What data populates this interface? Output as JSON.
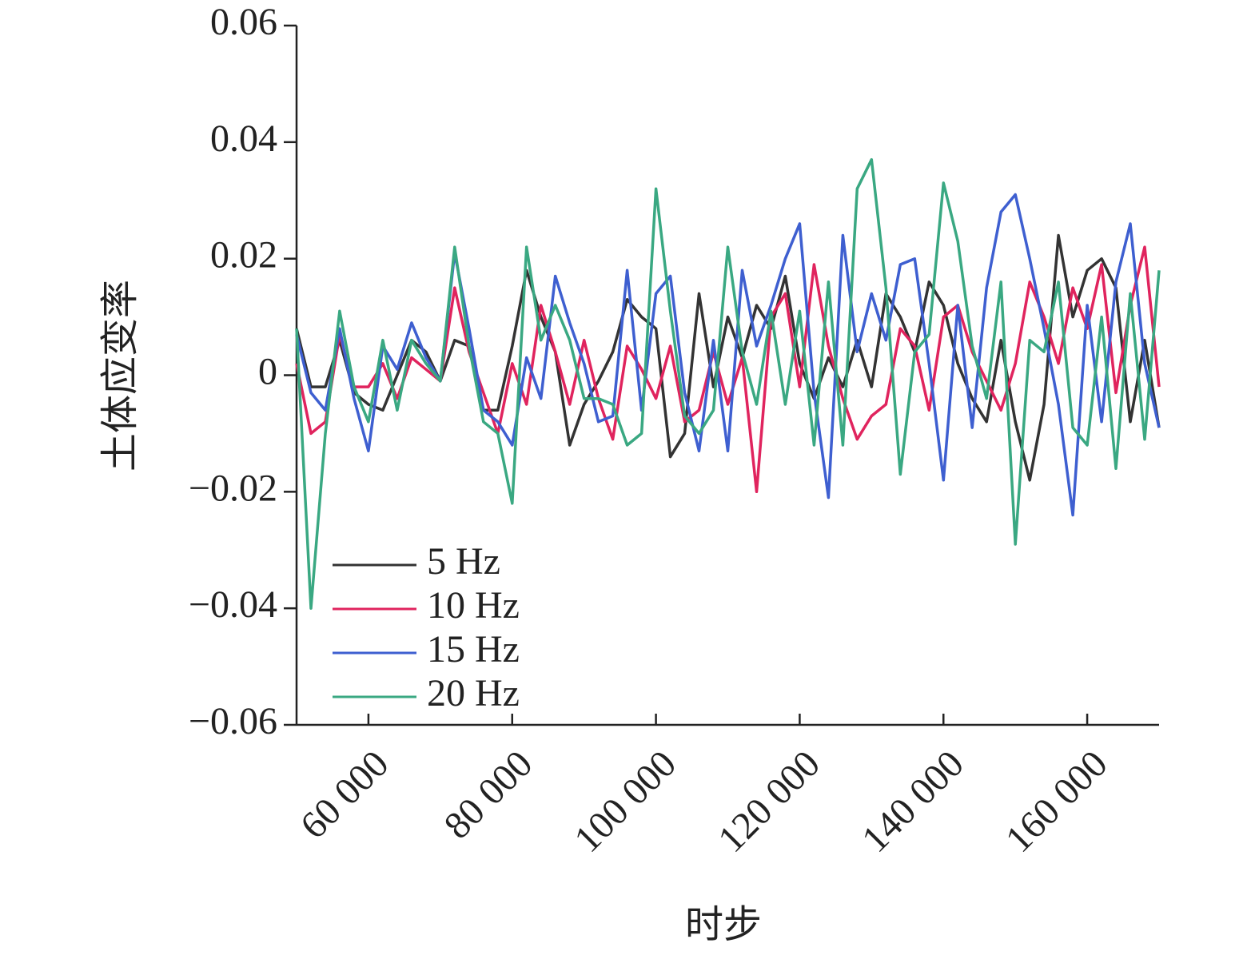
{
  "chart_data": {
    "type": "line",
    "xlabel": "时步",
    "ylabel": "土体应变率",
    "x": [
      50000,
      52000,
      54000,
      56000,
      58000,
      60000,
      62000,
      64000,
      66000,
      68000,
      70000,
      72000,
      74000,
      76000,
      78000,
      80000,
      82000,
      84000,
      86000,
      88000,
      90000,
      92000,
      94000,
      96000,
      98000,
      100000,
      102000,
      104000,
      106000,
      108000,
      110000,
      112000,
      114000,
      116000,
      118000,
      120000,
      122000,
      124000,
      126000,
      128000,
      130000,
      132000,
      134000,
      136000,
      138000,
      140000,
      142000,
      144000,
      146000,
      148000,
      150000,
      152000,
      154000,
      156000,
      158000,
      160000,
      162000,
      164000,
      166000,
      168000,
      170000
    ],
    "series": [
      {
        "name": "5 Hz",
        "color": "#333333",
        "values": [
          0.008,
          -0.002,
          -0.002,
          0.006,
          -0.003,
          -0.005,
          -0.006,
          0.0,
          0.006,
          0.004,
          -0.001,
          0.006,
          0.005,
          -0.006,
          -0.006,
          0.005,
          0.018,
          0.01,
          0.004,
          -0.012,
          -0.005,
          -0.001,
          0.004,
          0.013,
          0.01,
          0.008,
          -0.014,
          -0.01,
          0.014,
          -0.002,
          0.01,
          0.003,
          0.012,
          0.008,
          0.017,
          0.002,
          -0.004,
          0.003,
          -0.002,
          0.006,
          -0.002,
          0.014,
          0.01,
          0.004,
          0.016,
          0.012,
          0.002,
          -0.004,
          -0.008,
          0.006,
          -0.008,
          -0.018,
          -0.005,
          0.024,
          0.01,
          0.018,
          0.02,
          0.015,
          -0.008,
          0.006,
          -0.009
        ]
      },
      {
        "name": "10 Hz",
        "color": "#e0245e",
        "values": [
          0.002,
          -0.01,
          -0.008,
          0.007,
          -0.002,
          -0.002,
          0.002,
          -0.004,
          0.003,
          0.001,
          -0.001,
          0.015,
          0.004,
          -0.003,
          -0.01,
          0.002,
          -0.005,
          0.012,
          0.004,
          -0.005,
          0.006,
          -0.004,
          -0.011,
          0.005,
          0.001,
          -0.004,
          0.005,
          -0.008,
          -0.006,
          0.004,
          -0.005,
          0.003,
          -0.02,
          0.01,
          0.014,
          -0.002,
          0.019,
          0.005,
          -0.004,
          -0.011,
          -0.007,
          -0.005,
          0.008,
          0.005,
          -0.006,
          0.01,
          0.012,
          0.004,
          -0.001,
          -0.006,
          0.002,
          0.016,
          0.01,
          0.002,
          0.015,
          0.008,
          0.019,
          -0.003,
          0.012,
          0.022,
          -0.002
        ]
      },
      {
        "name": "15 Hz",
        "color": "#3e5fd0",
        "values": [
          0.007,
          -0.003,
          -0.006,
          0.008,
          -0.004,
          -0.013,
          0.005,
          0.001,
          0.009,
          0.003,
          -0.001,
          0.021,
          0.008,
          -0.006,
          -0.008,
          -0.012,
          0.003,
          -0.004,
          0.017,
          0.009,
          0.002,
          -0.008,
          -0.007,
          0.018,
          -0.006,
          0.014,
          0.017,
          -0.003,
          -0.013,
          0.006,
          -0.013,
          0.018,
          0.005,
          0.012,
          0.02,
          0.026,
          -0.003,
          -0.021,
          0.024,
          0.004,
          0.014,
          0.006,
          0.019,
          0.02,
          0.002,
          -0.018,
          0.012,
          -0.009,
          0.015,
          0.028,
          0.031,
          0.02,
          0.008,
          -0.005,
          -0.024,
          0.012,
          -0.008,
          0.016,
          0.026,
          0.002,
          -0.009
        ]
      },
      {
        "name": "20 Hz",
        "color": "#3aa882",
        "values": [
          0.008,
          -0.04,
          -0.01,
          0.011,
          -0.002,
          -0.008,
          0.006,
          -0.006,
          0.006,
          0.002,
          -0.001,
          0.022,
          0.005,
          -0.008,
          -0.01,
          -0.022,
          0.022,
          0.006,
          0.012,
          0.006,
          -0.004,
          -0.004,
          -0.005,
          -0.012,
          -0.01,
          0.032,
          0.011,
          -0.007,
          -0.01,
          -0.006,
          0.022,
          0.004,
          -0.005,
          0.011,
          -0.005,
          0.011,
          -0.012,
          0.016,
          -0.012,
          0.032,
          0.037,
          0.015,
          -0.017,
          0.004,
          0.007,
          0.033,
          0.023,
          0.005,
          -0.004,
          0.016,
          -0.029,
          0.006,
          0.004,
          0.016,
          -0.009,
          -0.012,
          0.01,
          -0.016,
          0.014,
          -0.011,
          0.018
        ]
      }
    ],
    "xlim": [
      50000,
      170000
    ],
    "xticks": [
      {
        "value": 60000,
        "label": "60 000"
      },
      {
        "value": 80000,
        "label": "80 000"
      },
      {
        "value": 100000,
        "label": "100 000"
      },
      {
        "value": 120000,
        "label": "120 000"
      },
      {
        "value": 140000,
        "label": "140 000"
      },
      {
        "value": 160000,
        "label": "160 000"
      }
    ],
    "ylim": [
      -0.06,
      0.06
    ],
    "yticks": [
      {
        "value": -0.06,
        "label": "−0.06"
      },
      {
        "value": -0.04,
        "label": "−0.04"
      },
      {
        "value": -0.02,
        "label": "−0.02"
      },
      0,
      0.02,
      0.04,
      0.06
    ],
    "legend": "lower left"
  }
}
